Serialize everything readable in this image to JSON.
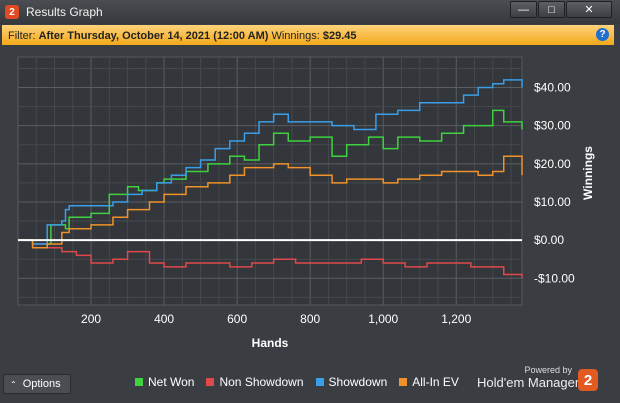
{
  "window": {
    "title": "Results Graph",
    "app_icon_glyph": "2",
    "buttons": {
      "minimize": "—",
      "maximize": "□",
      "close": "✕"
    }
  },
  "filter": {
    "prefix": "Filter:",
    "value": "After Thursday, October 14, 2021 (12:00 AM)",
    "winnings_label": "Winnings:",
    "winnings_value": "$29.45",
    "help_glyph": "?"
  },
  "chart_data": {
    "type": "line",
    "xlabel": "Hands",
    "ylabel": "Winnings",
    "xlim": [
      0,
      1380
    ],
    "ylim": [
      -17,
      48
    ],
    "x_ticks": [
      200,
      400,
      600,
      800,
      1000,
      1200
    ],
    "x_tick_labels": [
      "200",
      "400",
      "600",
      "800",
      "1,000",
      "1,200"
    ],
    "y_ticks": [
      40,
      30,
      20,
      10,
      0,
      -10
    ],
    "y_tick_labels": [
      "$40.00",
      "$30.00",
      "$20.00",
      "$10.00",
      "$0.00",
      "-$10.00"
    ],
    "grid": true,
    "zero_line": true,
    "series": [
      {
        "name": "Net Won",
        "color": "#3fd13f",
        "x": [
          0,
          40,
          80,
          90,
          130,
          140,
          200,
          250,
          300,
          330,
          380,
          400,
          460,
          520,
          580,
          620,
          660,
          700,
          740,
          800,
          860,
          900,
          960,
          1000,
          1040,
          1100,
          1160,
          1220,
          1260,
          1300,
          1330,
          1380
        ],
        "y": [
          0,
          -2,
          -1,
          4,
          3,
          6,
          7,
          12,
          14,
          13,
          15,
          16,
          18,
          20,
          22,
          21,
          25,
          28,
          26,
          27,
          22,
          25,
          27,
          24,
          27,
          26,
          28,
          30,
          30,
          34,
          31,
          29
        ]
      },
      {
        "name": "Non Showdown",
        "color": "#e0484a",
        "x": [
          0,
          40,
          80,
          120,
          160,
          200,
          260,
          300,
          360,
          400,
          460,
          520,
          580,
          640,
          700,
          760,
          820,
          880,
          940,
          1000,
          1060,
          1120,
          1180,
          1240,
          1300,
          1330,
          1380
        ],
        "y": [
          0,
          -1,
          -2,
          -3,
          -4,
          -6,
          -5,
          -3,
          -6,
          -7,
          -6,
          -6,
          -7,
          -6,
          -5,
          -6,
          -6,
          -6,
          -5,
          -6,
          -7,
          -6,
          -6,
          -7,
          -7,
          -9,
          -10
        ]
      },
      {
        "name": "Showdown",
        "color": "#3a9ee8",
        "x": [
          0,
          40,
          80,
          120,
          130,
          140,
          200,
          260,
          300,
          340,
          380,
          420,
          460,
          500,
          540,
          580,
          620,
          660,
          700,
          740,
          800,
          860,
          920,
          980,
          1040,
          1100,
          1160,
          1220,
          1260,
          1300,
          1330,
          1380
        ],
        "y": [
          0,
          -1,
          4,
          5,
          8,
          9,
          9,
          10,
          12,
          13,
          15,
          17,
          19,
          21,
          24,
          26,
          28,
          31,
          33,
          31,
          31,
          30,
          29,
          33,
          34,
          36,
          36,
          38,
          40,
          41,
          42,
          40
        ]
      },
      {
        "name": "All-In EV",
        "color": "#f0922a",
        "x": [
          0,
          40,
          80,
          120,
          140,
          200,
          260,
          300,
          360,
          400,
          460,
          520,
          580,
          620,
          660,
          700,
          740,
          800,
          860,
          900,
          960,
          1000,
          1040,
          1100,
          1160,
          1220,
          1260,
          1300,
          1330,
          1380
        ],
        "y": [
          0,
          -2,
          -1,
          2,
          3,
          4,
          6,
          8,
          10,
          12,
          14,
          15,
          17,
          19,
          19,
          20,
          19,
          17,
          15,
          16,
          16,
          15,
          16,
          17,
          18,
          18,
          17,
          18,
          22,
          17
        ]
      }
    ]
  },
  "bottom": {
    "options_label": "Options",
    "options_icon": "chevron-up-icon",
    "powered_by": "Powered by",
    "brand": "Hold'em Manager",
    "brand_logo_glyph": "2"
  }
}
